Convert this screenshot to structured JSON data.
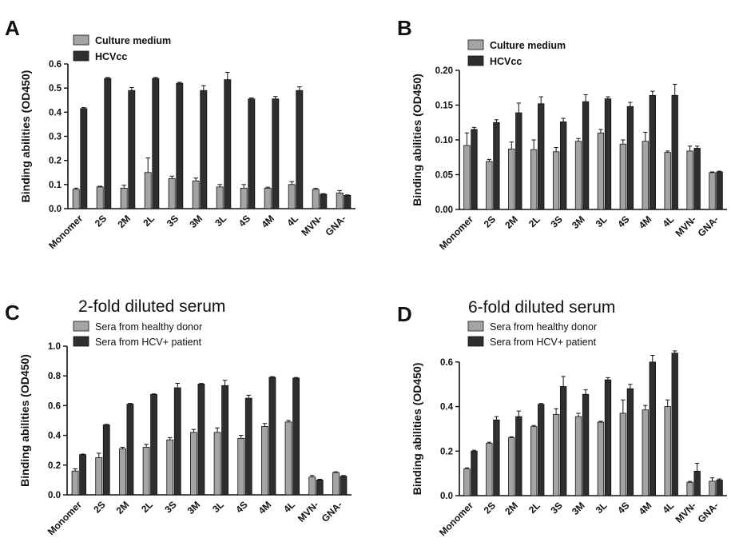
{
  "colors": {
    "light": "#a4a4a4",
    "dark": "#2e2e2e",
    "axis": "#111111"
  },
  "chart_data": [
    {
      "panel": "A",
      "type": "bar",
      "title": "",
      "ylabel": "Binding abilities (OD450)",
      "ylim": [
        0,
        0.6
      ],
      "yticks": [
        0.0,
        0.1,
        0.2,
        0.3,
        0.4,
        0.5,
        0.6
      ],
      "ytick_labels": [
        "0.0",
        "0.1",
        "0.2",
        "0.3",
        "0.4",
        "0.5",
        "0.6"
      ],
      "categories": [
        "Monomer",
        "2S",
        "2M",
        "2L",
        "3S",
        "3M",
        "3L",
        "4S",
        "4M",
        "4L",
        "MVN-",
        "GNA-"
      ],
      "series": [
        {
          "name": "Culture medium",
          "color": "#a4a4a4",
          "values": [
            0.08,
            0.09,
            0.085,
            0.15,
            0.125,
            0.115,
            0.09,
            0.085,
            0.085,
            0.1,
            0.08,
            0.065
          ],
          "errors": [
            0.005,
            0.003,
            0.012,
            0.06,
            0.01,
            0.012,
            0.01,
            0.015,
            0.004,
            0.012,
            0.004,
            0.01
          ]
        },
        {
          "name": "HCVcc",
          "color": "#2e2e2e",
          "values": [
            0.415,
            0.54,
            0.49,
            0.54,
            0.52,
            0.49,
            0.535,
            0.455,
            0.455,
            0.49,
            0.06,
            0.055
          ],
          "errors": [
            0.004,
            0.004,
            0.012,
            0.004,
            0.004,
            0.02,
            0.03,
            0.004,
            0.01,
            0.015,
            0.002,
            0.002
          ]
        }
      ],
      "legend": "top-left"
    },
    {
      "panel": "B",
      "type": "bar",
      "title": "",
      "ylabel": "Binding abilities (OD450)",
      "ylim": [
        0,
        0.2
      ],
      "yticks": [
        0.0,
        0.05,
        0.1,
        0.15,
        0.2
      ],
      "ytick_labels": [
        "0.00",
        "0.05",
        "0.10",
        "0.15",
        "0.20"
      ],
      "categories": [
        "Monomer",
        "2S",
        "2M",
        "2L",
        "3S",
        "3M",
        "3L",
        "4S",
        "4M",
        "4L",
        "MVN-",
        "GNA-"
      ],
      "series": [
        {
          "name": "Culture medium",
          "color": "#a4a4a4",
          "values": [
            0.092,
            0.069,
            0.087,
            0.086,
            0.083,
            0.098,
            0.11,
            0.094,
            0.098,
            0.082,
            0.084,
            0.053
          ],
          "errors": [
            0.018,
            0.003,
            0.01,
            0.014,
            0.006,
            0.004,
            0.005,
            0.006,
            0.013,
            0.002,
            0.007,
            0.001
          ]
        },
        {
          "name": "HCVcc",
          "color": "#2e2e2e",
          "values": [
            0.115,
            0.125,
            0.139,
            0.152,
            0.126,
            0.155,
            0.159,
            0.148,
            0.164,
            0.164,
            0.088,
            0.054
          ],
          "errors": [
            0.003,
            0.004,
            0.014,
            0.01,
            0.005,
            0.01,
            0.003,
            0.006,
            0.006,
            0.016,
            0.003,
            0.001
          ]
        }
      ],
      "legend": "top-left"
    },
    {
      "panel": "C",
      "type": "bar",
      "title": "2-fold diluted serum",
      "ylabel": "Binding abilities (OD450)",
      "ylim": [
        0,
        1.0
      ],
      "yticks": [
        0.0,
        0.2,
        0.4,
        0.6,
        0.8,
        1.0
      ],
      "ytick_labels": [
        "0.0",
        "0.2",
        "0.4",
        "0.6",
        "0.8",
        "1.0"
      ],
      "categories": [
        "Monomer",
        "2S",
        "2M",
        "2L",
        "3S",
        "3M",
        "3L",
        "4S",
        "4M",
        "4L",
        "MVN-",
        "GNA-"
      ],
      "series": [
        {
          "name": "Sera from healthy donor",
          "color": "#a4a4a4",
          "values": [
            0.16,
            0.25,
            0.31,
            0.32,
            0.37,
            0.42,
            0.42,
            0.38,
            0.46,
            0.49,
            0.12,
            0.15
          ],
          "errors": [
            0.015,
            0.03,
            0.01,
            0.02,
            0.015,
            0.02,
            0.03,
            0.02,
            0.02,
            0.01,
            0.01,
            0.005
          ]
        },
        {
          "name": "Sera from HCV+ patient",
          "color": "#2e2e2e",
          "values": [
            0.27,
            0.47,
            0.61,
            0.675,
            0.72,
            0.745,
            0.735,
            0.65,
            0.79,
            0.785,
            0.1,
            0.125
          ],
          "errors": [
            0.004,
            0.004,
            0.005,
            0.004,
            0.03,
            0.004,
            0.035,
            0.02,
            0.005,
            0.004,
            0.005,
            0.005
          ]
        }
      ],
      "legend": "top-left"
    },
    {
      "panel": "D",
      "type": "bar",
      "title": "6-fold diluted serum",
      "ylabel": "Binding abilities (OD450)",
      "ylim": [
        0,
        0.7
      ],
      "yticks": [
        0.0,
        0.2,
        0.4,
        0.6
      ],
      "ytick_labels": [
        "0.0",
        "0.2",
        "0.4",
        "0.6"
      ],
      "categories": [
        "Monomer",
        "2S",
        "2M",
        "2L",
        "3S",
        "3M",
        "3L",
        "4S",
        "4M",
        "4L",
        "MVN-",
        "GNA-"
      ],
      "series": [
        {
          "name": "Sera from healthy donor",
          "color": "#a4a4a4",
          "values": [
            0.12,
            0.235,
            0.26,
            0.31,
            0.365,
            0.355,
            0.33,
            0.37,
            0.385,
            0.4,
            0.06,
            0.065
          ],
          "errors": [
            0.005,
            0.005,
            0.004,
            0.005,
            0.025,
            0.015,
            0.004,
            0.06,
            0.02,
            0.03,
            0.004,
            0.015
          ]
        },
        {
          "name": "Sera from HCV+ patient",
          "color": "#2e2e2e",
          "values": [
            0.2,
            0.34,
            0.355,
            0.41,
            0.49,
            0.455,
            0.52,
            0.48,
            0.6,
            0.64,
            0.11,
            0.07
          ],
          "errors": [
            0.004,
            0.015,
            0.025,
            0.004,
            0.045,
            0.02,
            0.01,
            0.02,
            0.03,
            0.01,
            0.035,
            0.005
          ]
        }
      ],
      "legend": "top-left"
    }
  ]
}
